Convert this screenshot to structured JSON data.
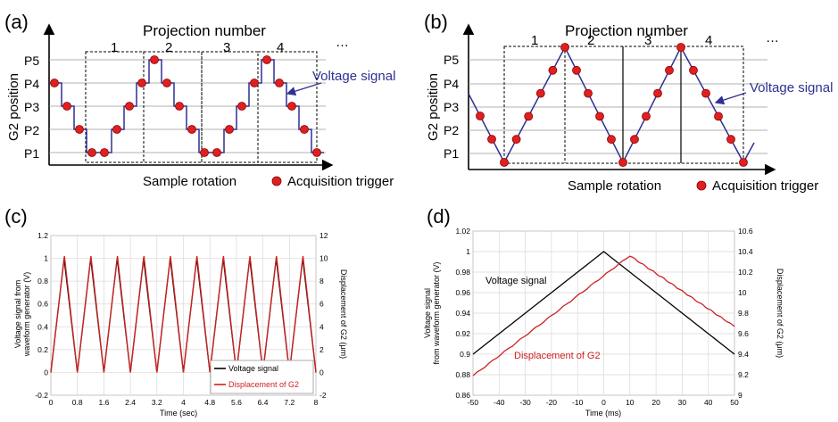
{
  "panels": {
    "a": {
      "label": "(a)",
      "title": "Projection number",
      "numbers": [
        "1",
        "2",
        "3",
        "4",
        "…"
      ],
      "y_ticks": [
        "P5",
        "P4",
        "P3",
        "P2",
        "P1"
      ],
      "ylabel": "G2 position",
      "xlabel": "Sample rotation",
      "legend": "Acquisition trigger",
      "annotation": "Voltage signal",
      "colors": {
        "signal": "#2e3192",
        "trigger": "#e02020",
        "frame": "#555555"
      }
    },
    "b": {
      "label": "(b)",
      "title": "Projection number",
      "numbers": [
        "1",
        "2",
        "3",
        "4",
        "…"
      ],
      "y_ticks": [
        "P5",
        "P4",
        "P3",
        "P2",
        "P1"
      ],
      "ylabel": "G2 position",
      "xlabel": "Sample rotation",
      "legend": "Acquisition trigger",
      "annotation": "Voltage signal"
    },
    "c": {
      "label": "(c)"
    },
    "d": {
      "label": "(d)"
    }
  },
  "chart_data": [
    {
      "panel": "(c)",
      "type": "line",
      "xlabel": "Time (sec)",
      "ylabel": "Voltage signal from waveform generator (V)",
      "y2label": "Displacement of G2 (μm)",
      "xlim": [
        0,
        8
      ],
      "ylim": [
        -0.2,
        1.2
      ],
      "y2lim": [
        -2,
        12
      ],
      "x_ticks": [
        0,
        0.8,
        1.6,
        2.4,
        3.2,
        4,
        4.8,
        5.6,
        6.4,
        7.2,
        8
      ],
      "y_ticks": [
        -0.2,
        0,
        0.2,
        0.4,
        0.6,
        0.8,
        1,
        1.2
      ],
      "y2_ticks": [
        -2,
        0,
        2,
        4,
        6,
        8,
        10,
        12
      ],
      "grid": true,
      "legend_position": "bottom-right",
      "series": [
        {
          "name": "Voltage signal",
          "color": "#000000",
          "axis": "left",
          "period": 0.8,
          "min": 0,
          "max": 1,
          "peak_offset": 0.4
        },
        {
          "name": "Displacement of G2",
          "color": "#d02020",
          "axis": "right",
          "period": 0.8,
          "min": 0,
          "max": 10.2,
          "peak_offset": 0.41
        }
      ]
    },
    {
      "panel": "(d)",
      "type": "line",
      "xlabel": "Time (ms)",
      "ylabel": "Voltage signal from waveform generator (V)",
      "y2label": "Displacement of G2 (μm)",
      "xlim": [
        -50,
        50
      ],
      "ylim": [
        0.86,
        1.02
      ],
      "y2lim": [
        9,
        10.6
      ],
      "x_ticks": [
        -50,
        -40,
        -30,
        -20,
        -10,
        0,
        10,
        20,
        30,
        40,
        50
      ],
      "y_ticks": [
        0.86,
        0.88,
        0.9,
        0.92,
        0.94,
        0.96,
        0.98,
        1,
        1.02
      ],
      "y2_ticks": [
        9,
        9.2,
        9.4,
        9.6,
        9.8,
        10,
        10.2,
        10.4,
        10.6
      ],
      "grid": true,
      "series": [
        {
          "name": "Voltage signal",
          "color": "#000000",
          "axis": "left",
          "x": [
            -50,
            0,
            50
          ],
          "values": [
            0.9,
            1.0,
            0.9
          ]
        },
        {
          "name": "Displacement of G2",
          "color": "#d02020",
          "axis": "right",
          "x": [
            -50,
            10,
            50
          ],
          "values": [
            9.19,
            10.36,
            9.67
          ]
        }
      ]
    }
  ]
}
